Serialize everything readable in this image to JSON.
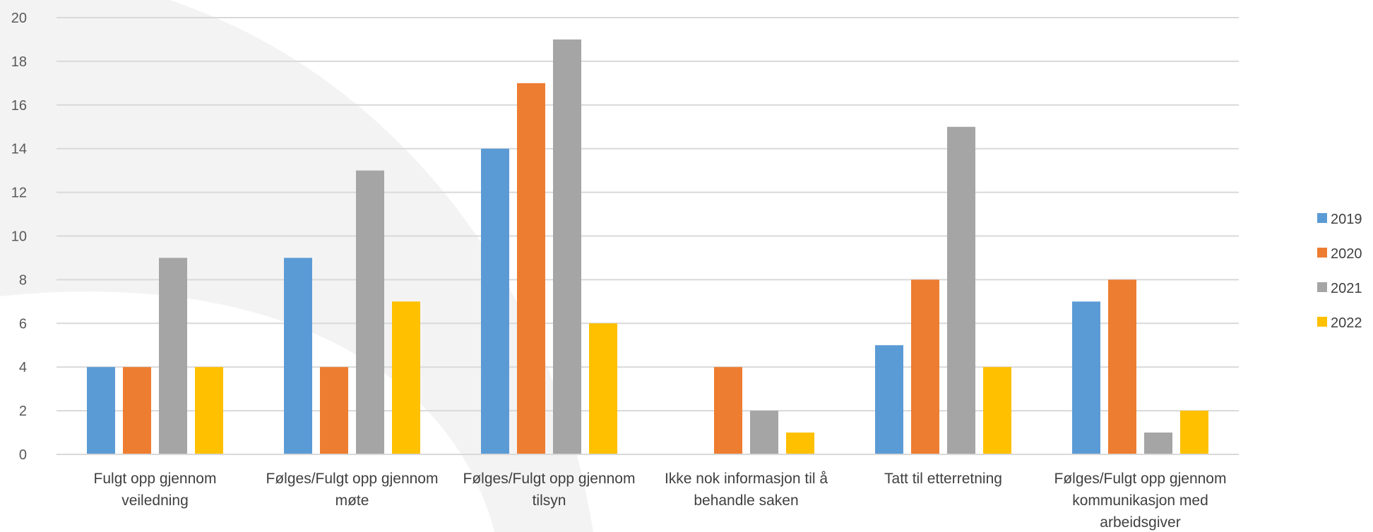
{
  "chart_data": {
    "type": "bar",
    "categories": [
      [
        "Fulgt opp gjennom",
        "veiledning"
      ],
      [
        "Følges/Fulgt opp gjennom",
        "møte"
      ],
      [
        "Følges/Fulgt opp gjennom",
        "tilsyn"
      ],
      [
        "Ikke nok informasjon til å",
        "behandle saken"
      ],
      [
        "Tatt til etterretning"
      ],
      [
        "Følges/Fulgt opp gjennom",
        "kommunikasjon med",
        "arbeidsgiver"
      ]
    ],
    "series": [
      {
        "name": "2019",
        "color": "#5B9BD5",
        "values": [
          4,
          9,
          14,
          0,
          5,
          7
        ]
      },
      {
        "name": "2020",
        "color": "#ED7D31",
        "values": [
          4,
          4,
          17,
          4,
          8,
          8
        ]
      },
      {
        "name": "2021",
        "color": "#A5A5A5",
        "values": [
          9,
          13,
          19,
          2,
          15,
          1
        ]
      },
      {
        "name": "2022",
        "color": "#FFC000",
        "values": [
          4,
          7,
          6,
          1,
          4,
          2
        ]
      }
    ],
    "ylim": [
      0,
      20
    ],
    "yticks": [
      0,
      2,
      4,
      6,
      8,
      10,
      12,
      14,
      16,
      18,
      20
    ],
    "grid": true,
    "legend_position": "right",
    "title": "",
    "xlabel": "",
    "ylabel": ""
  }
}
